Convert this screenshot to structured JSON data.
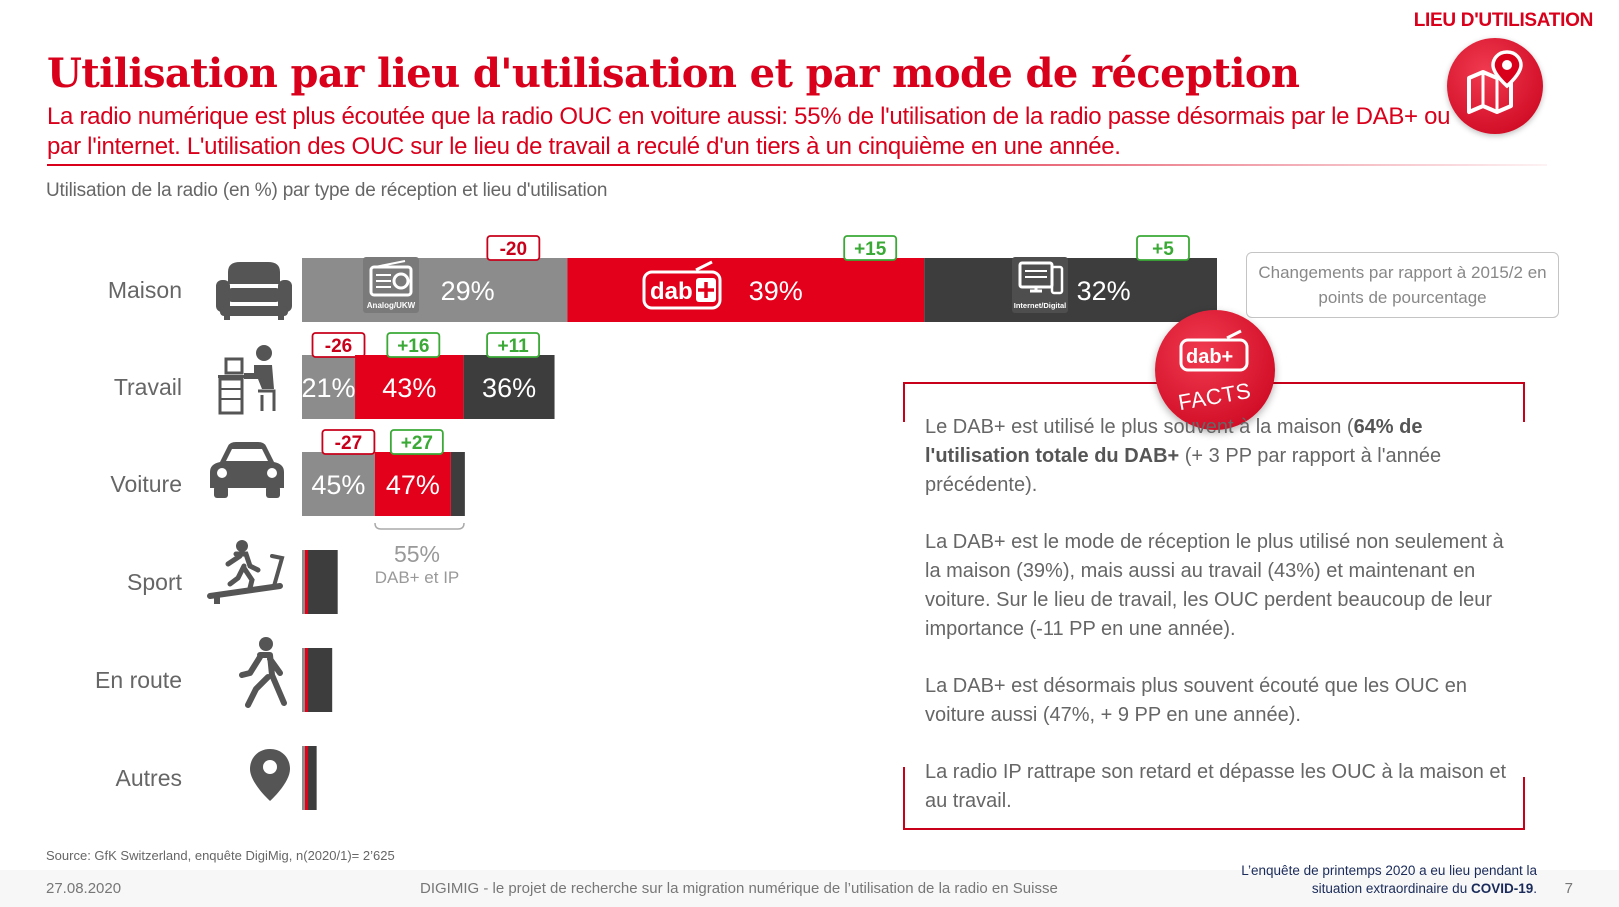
{
  "header": {
    "section_tag": "LIEU D'UTILISATION",
    "title": "Utilisation par lieu d'utilisation et par mode de réception",
    "subtitle": "La radio numérique est plus écoutée que la radio OUC en voiture aussi: 55% de l'utilisation de la radio passe désormais par le DAB+ ou par l'internet. L'utilisation des OUC sur le lieu de travail a reculé d'un tiers à un cinquième en une année.",
    "chart_caption": "Utilisation de la radio (en %) par type de réception et lieu d'utilisation"
  },
  "colors": {
    "analog": "#8c8c8c",
    "dab": "#e3001b",
    "internet": "#3d3d3d",
    "accent": "#d9001b",
    "positive": "#3aa935",
    "negative": "#c8001a"
  },
  "icons": {
    "badge": "map-pin-icon",
    "maison": "sofa-icon",
    "travail": "desk-worker-icon",
    "voiture": "car-icon",
    "sport": "treadmill-runner-icon",
    "en_route": "walking-person-icon",
    "autres": "location-pin-icon",
    "analog": "radio-icon",
    "internet": "computer-icon"
  },
  "chart_data": {
    "type": "bar",
    "orientation": "horizontal",
    "stacked": true,
    "categories": [
      "Maison",
      "Travail",
      "Voiture",
      "Sport",
      "En route",
      "Autres"
    ],
    "series": [
      {
        "name": "Analog/UKW",
        "values": [
          29,
          21,
          45,
          null,
          null,
          null
        ],
        "labels": [
          "29%",
          "21%",
          "45%",
          "",
          "",
          ""
        ],
        "changes": [
          "-20",
          "-26",
          "-27",
          "",
          "",
          ""
        ]
      },
      {
        "name": "dab+",
        "values": [
          39,
          43,
          47,
          null,
          null,
          null
        ],
        "labels": [
          "39%",
          "43%",
          "47%",
          "",
          "",
          ""
        ],
        "changes": [
          "+15",
          "+16",
          "+27",
          "",
          "",
          ""
        ]
      },
      {
        "name": "Internet/Digital",
        "values": [
          32,
          36,
          null,
          null,
          null,
          null
        ],
        "labels": [
          "32%",
          "36%",
          "",
          "",
          "",
          ""
        ],
        "changes": [
          "+5",
          "+11",
          "",
          "",
          "",
          ""
        ]
      }
    ],
    "relative_bar_length": [
      1.0,
      0.276,
      0.178,
      0.039,
      0.033,
      0.016
    ],
    "annotation": {
      "value": "55%",
      "text": "DAB+ et IP"
    },
    "legend_note": "Changements par rapport à 2015/2 en points de pourcentage",
    "segment_icon_labels": {
      "analog": "Analog/UKW",
      "internet": "Internet/Digital"
    }
  },
  "facts": {
    "badge_label": "FACTS",
    "badge_logo": "dab+",
    "p1_pre": "Le DAB+ est utilisé le plus souvent à la maison (",
    "p1_bold": "64% de l'utilisation totale du DAB+",
    "p1_post": " (+ 3 PP par rapport à l'année précédente).",
    "p2": "La DAB+ est le mode de réception le plus utilisé non seulement à la maison (39%), mais aussi au travail (43%) et maintenant en voiture. Sur le lieu de travail, les OUC perdent beaucoup de leur importance (-11 PP en une année).",
    "p3": "La DAB+ est désormais plus souvent écouté que les OUC en voiture aussi (47%, + 9 PP en une année).",
    "p4": "La radio IP rattrape son retard et dépasse les OUC à la maison et au travail."
  },
  "footer": {
    "source": "Source: GfK Switzerland, enquête DigiMig, n(2020/1)= 2’625",
    "date": "27.08.2020",
    "project": "DIGIMIG - le projet de recherche sur la migration numérique de l’utilisation de la radio en Suisse",
    "covid_note_pre": "L’enquête de printemps 2020 a eu lieu pendant la situation extraordinaire du ",
    "covid_note_bold": "COVID-19",
    "covid_note_post": ".",
    "page_number": "7"
  }
}
